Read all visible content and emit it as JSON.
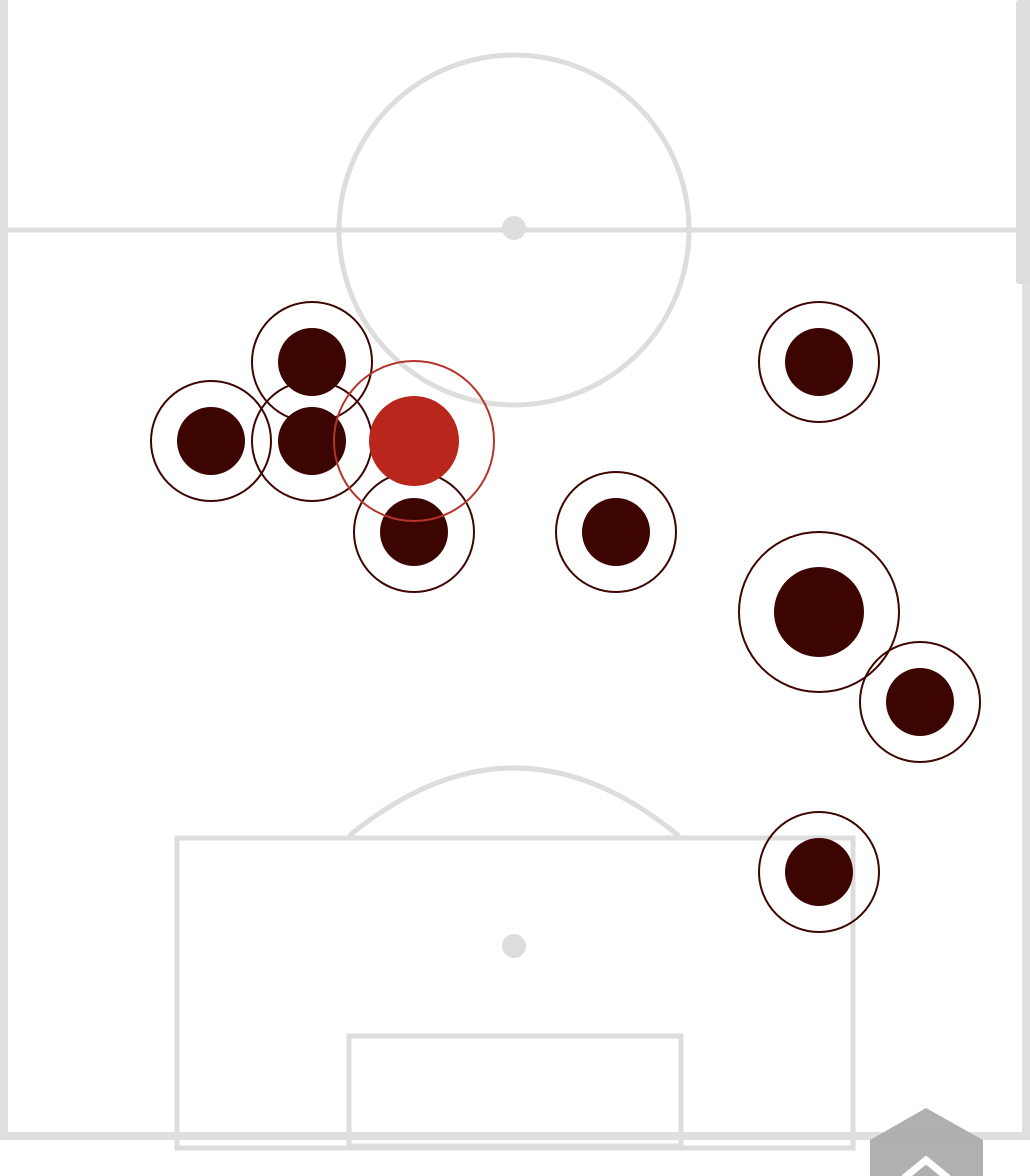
{
  "pitch": {
    "line_color": "#dddddd",
    "frame_color": "#e0e0e0"
  },
  "players": {
    "default_color": "#3d0502",
    "highlight_color": "#b8261c",
    "highlight_ring_color": "#b5342a",
    "count": 10
  },
  "scroll_top_button": {
    "icon": "chevron-up-icon",
    "color": "#acacac"
  }
}
